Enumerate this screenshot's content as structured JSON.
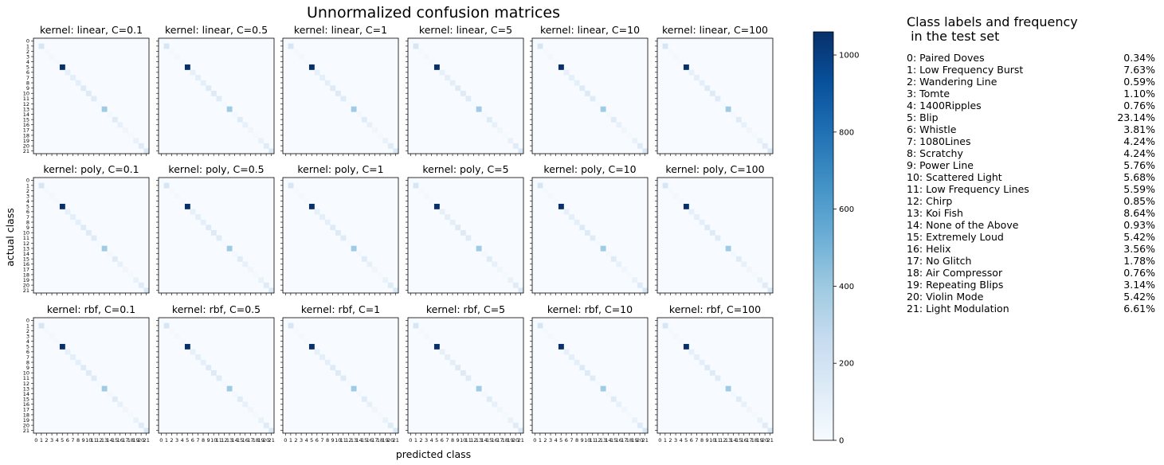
{
  "chart_data": {
    "type": "heatmap",
    "title": "Unnormalized confusion matrices",
    "xlabel": "predicted class",
    "ylabel": "actual class",
    "tick_labels": [
      "0",
      "1",
      "2",
      "3",
      "4",
      "5",
      "6",
      "7",
      "8",
      "9",
      "10",
      "11",
      "12",
      "13",
      "14",
      "15",
      "16",
      "17",
      "18",
      "19",
      "20",
      "21"
    ],
    "colormap": {
      "low": "#f7fbff",
      "high": "#08306b",
      "name": "Blues"
    },
    "colorbar": {
      "min": 0,
      "max": 1060,
      "ticks": [
        0,
        200,
        400,
        600,
        800,
        1000
      ]
    },
    "diagonal_values": [
      8,
      172,
      14,
      26,
      18,
      1060,
      88,
      100,
      98,
      135,
      130,
      128,
      20,
      390,
      22,
      125,
      82,
      42,
      18,
      72,
      125,
      155
    ],
    "panels": [
      {
        "title": "kernel: linear, C=0.1"
      },
      {
        "title": "kernel: linear, C=0.5"
      },
      {
        "title": "kernel: linear, C=1"
      },
      {
        "title": "kernel: linear, C=5"
      },
      {
        "title": "kernel: linear, C=10"
      },
      {
        "title": "kernel: linear, C=100"
      },
      {
        "title": "kernel: poly, C=0.1"
      },
      {
        "title": "kernel: poly, C=0.5"
      },
      {
        "title": "kernel: poly, C=1"
      },
      {
        "title": "kernel: poly, C=5"
      },
      {
        "title": "kernel: poly, C=10"
      },
      {
        "title": "kernel: poly, C=100"
      },
      {
        "title": "kernel: rbf, C=0.1"
      },
      {
        "title": "kernel: rbf, C=0.5"
      },
      {
        "title": "kernel: rbf, C=1"
      },
      {
        "title": "kernel: rbf, C=5"
      },
      {
        "title": "kernel: rbf, C=10"
      },
      {
        "title": "kernel: rbf, C=100"
      }
    ]
  },
  "legend": {
    "title_line1": "Class labels and frequency",
    "title_line2": " in the test set",
    "rows": [
      {
        "label": " 0:  Paired Doves",
        "freq": "0.34%"
      },
      {
        "label": " 1:  Low Frequency Burst",
        "freq": "7.63%"
      },
      {
        "label": " 2:  Wandering Line",
        "freq": "0.59%"
      },
      {
        "label": " 3:  Tomte",
        "freq": "1.10%"
      },
      {
        "label": " 4:  1400Ripples",
        "freq": "0.76%"
      },
      {
        "label": " 5:  Blip",
        "freq": "23.14%"
      },
      {
        "label": " 6:  Whistle",
        "freq": "3.81%"
      },
      {
        "label": " 7:  1080Lines",
        "freq": "4.24%"
      },
      {
        "label": " 8:  Scratchy",
        "freq": "4.24%"
      },
      {
        "label": " 9:  Power Line",
        "freq": "5.76%"
      },
      {
        "label": "10:  Scattered Light",
        "freq": "5.68%"
      },
      {
        "label": "11:  Low Frequency Lines",
        "freq": "5.59%"
      },
      {
        "label": "12:  Chirp",
        "freq": "0.85%"
      },
      {
        "label": "13:  Koi Fish",
        "freq": "8.64%"
      },
      {
        "label": "14:  None of the Above",
        "freq": "0.93%"
      },
      {
        "label": "15:  Extremely Loud",
        "freq": "5.42%"
      },
      {
        "label": "16:  Helix",
        "freq": "3.56%"
      },
      {
        "label": "17:  No Glitch",
        "freq": "1.78%"
      },
      {
        "label": "18:  Air Compressor",
        "freq": "0.76%"
      },
      {
        "label": "19:  Repeating Blips",
        "freq": "3.14%"
      },
      {
        "label": "20:  Violin Mode",
        "freq": "5.42%"
      },
      {
        "label": "21:  Light Modulation",
        "freq": "6.61%"
      }
    ]
  }
}
